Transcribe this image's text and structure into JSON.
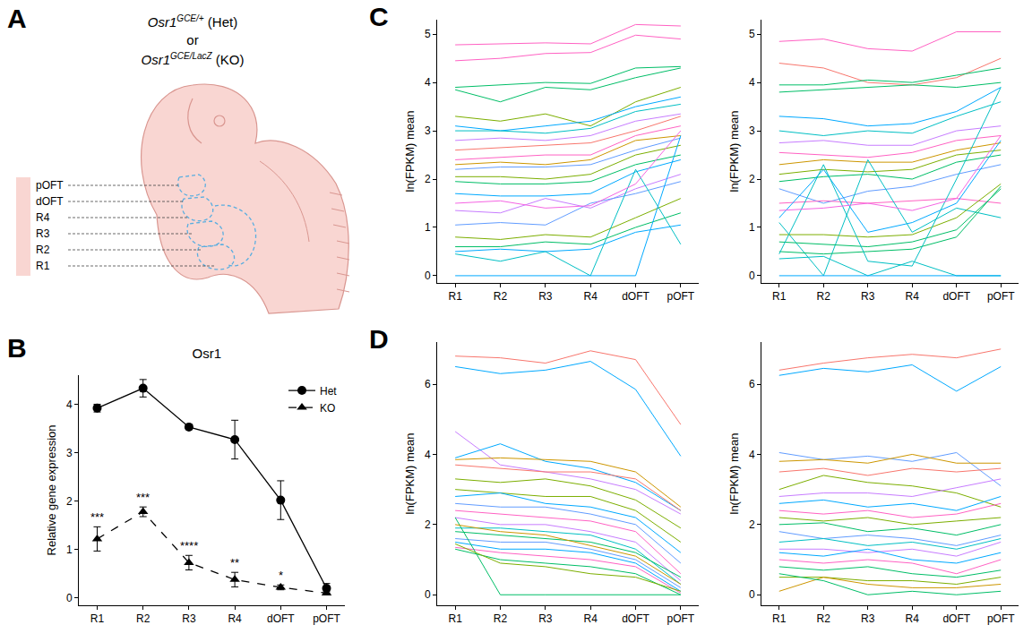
{
  "panel_a": {
    "letter": "A",
    "genotypes": [
      {
        "gene": "Osr1",
        "allele": "GCE/+",
        "label": "(Het)"
      },
      {
        "gene": "Osr1",
        "allele": "GCE/LacZ",
        "label": "(KO)"
      }
    ],
    "separator": "or",
    "regions": [
      "pOFT",
      "dOFT",
      "R4",
      "R3",
      "R2",
      "R1"
    ]
  },
  "chart_data": [
    {
      "panel": "B",
      "type": "line",
      "title": "Osr1",
      "y_label": "Relative gene expression",
      "categories": [
        "R1",
        "R2",
        "R3",
        "R4",
        "dOFT",
        "pOFT"
      ],
      "ylim": [
        -0.15,
        4.6
      ],
      "yticks": [
        0,
        1,
        2,
        3,
        4
      ],
      "legend": "top-right",
      "series": [
        {
          "name": "Het",
          "color": "#000000",
          "marker": "circle",
          "line_style": "solid",
          "values": [
            3.92,
            4.33,
            3.53,
            3.27,
            2.02,
            0.2
          ],
          "error": [
            0.08,
            0.18,
            0.03,
            0.4,
            0.4,
            0.1
          ]
        },
        {
          "name": "KO",
          "color": "#000000",
          "marker": "triangle-up",
          "line_style": "dashed",
          "values": [
            1.22,
            1.78,
            0.73,
            0.38,
            0.22,
            0.1
          ],
          "error": [
            0.25,
            0.1,
            0.15,
            0.15,
            0.05,
            0.03
          ],
          "significance": [
            "***",
            "***",
            "****",
            "**",
            "*",
            null
          ]
        }
      ]
    },
    {
      "panel": "C",
      "type": "line",
      "y_label": "ln(FPKM) mean",
      "categories": [
        "R1",
        "R2",
        "R3",
        "R4",
        "dOFT",
        "pOFT"
      ],
      "ylim": [
        -0.15,
        5.3
      ],
      "yticks": [
        0,
        1,
        2,
        3,
        4,
        5
      ],
      "series": [
        {
          "color": "#FF61C3",
          "values": [
            4.78,
            4.8,
            4.82,
            4.8,
            5.2,
            5.17
          ]
        },
        {
          "color": "#FF61C3",
          "values": [
            4.45,
            4.5,
            4.6,
            4.62,
            4.98,
            4.9
          ]
        },
        {
          "color": "#00BE67",
          "values": [
            3.9,
            3.95,
            4.0,
            3.98,
            4.3,
            4.33
          ]
        },
        {
          "color": "#00BE67",
          "values": [
            3.85,
            3.6,
            3.9,
            3.85,
            4.1,
            4.3
          ]
        },
        {
          "color": "#7CAE00",
          "values": [
            3.3,
            3.2,
            3.35,
            3.1,
            3.6,
            3.9
          ]
        },
        {
          "color": "#00A9FF",
          "values": [
            3.1,
            3.0,
            3.1,
            3.2,
            3.5,
            3.7
          ]
        },
        {
          "color": "#00BFC4",
          "values": [
            3.0,
            3.0,
            2.95,
            3.05,
            3.4,
            3.55
          ]
        },
        {
          "color": "#C77CFF",
          "values": [
            2.8,
            2.85,
            2.8,
            2.9,
            3.2,
            3.35
          ]
        },
        {
          "color": "#F8766D",
          "values": [
            2.6,
            2.65,
            2.7,
            2.75,
            3.0,
            3.3
          ]
        },
        {
          "color": "#FF61C3",
          "values": [
            2.4,
            2.45,
            2.5,
            2.5,
            2.9,
            3.1
          ]
        },
        {
          "color": "#CD9600",
          "values": [
            2.3,
            2.35,
            2.3,
            2.4,
            2.8,
            2.9
          ]
        },
        {
          "color": "#619CFF",
          "values": [
            2.2,
            2.25,
            2.25,
            2.3,
            2.6,
            2.85
          ]
        },
        {
          "color": "#7CAE00",
          "values": [
            2.05,
            2.05,
            2.0,
            2.1,
            2.5,
            2.7
          ]
        },
        {
          "color": "#00BE67",
          "values": [
            1.95,
            1.9,
            1.9,
            1.95,
            2.3,
            2.5
          ]
        },
        {
          "color": "#00A9FF",
          "values": [
            1.7,
            1.65,
            1.65,
            1.7,
            2.15,
            2.4
          ]
        },
        {
          "color": "#C77CFF",
          "values": [
            1.35,
            1.3,
            1.6,
            1.4,
            1.8,
            2.1
          ]
        },
        {
          "color": "#619CFF",
          "values": [
            1.05,
            1.1,
            1.05,
            1.5,
            1.7,
            1.95
          ]
        },
        {
          "color": "#7CAE00",
          "values": [
            0.8,
            0.75,
            0.85,
            0.8,
            1.2,
            1.6
          ]
        },
        {
          "color": "#00BE67",
          "values": [
            0.6,
            0.6,
            0.7,
            0.65,
            1.0,
            1.3
          ]
        },
        {
          "color": "#00A9FF",
          "values": [
            0.5,
            0.55,
            0.5,
            0.55,
            0.9,
            1.05
          ]
        },
        {
          "color": "#00BFC4",
          "values": [
            0.45,
            0.3,
            0.5,
            0.0,
            2.2,
            0.65
          ]
        },
        {
          "color": "#00A9FF",
          "values": [
            0.0,
            0.0,
            0.0,
            0.0,
            0.0,
            2.9
          ]
        },
        {
          "color": "#F564E3",
          "values": [
            1.5,
            1.55,
            1.4,
            1.45,
            1.9,
            3.0
          ]
        }
      ]
    },
    {
      "type": "line",
      "y_label": "ln(FPKM) mean",
      "categories": [
        "R1",
        "R2",
        "R3",
        "R4",
        "dOFT",
        "pOFT"
      ],
      "ylim": [
        -0.15,
        5.3
      ],
      "yticks": [
        0,
        1,
        2,
        3,
        4,
        5
      ],
      "series": [
        {
          "color": "#FF61C3",
          "values": [
            4.85,
            4.9,
            4.7,
            4.65,
            5.05,
            5.05
          ]
        },
        {
          "color": "#F8766D",
          "values": [
            4.4,
            4.3,
            4.0,
            3.95,
            4.1,
            4.5
          ]
        },
        {
          "color": "#00BE67",
          "values": [
            3.95,
            3.95,
            4.05,
            4.0,
            4.15,
            4.3
          ]
        },
        {
          "color": "#00BE67",
          "values": [
            3.8,
            3.85,
            3.9,
            3.95,
            3.9,
            4.0
          ]
        },
        {
          "color": "#00A9FF",
          "values": [
            3.3,
            3.25,
            3.1,
            3.15,
            3.4,
            3.9
          ]
        },
        {
          "color": "#00BFC4",
          "values": [
            3.0,
            2.9,
            3.0,
            2.95,
            3.3,
            3.6
          ]
        },
        {
          "color": "#C77CFF",
          "values": [
            2.75,
            2.8,
            2.7,
            2.7,
            3.0,
            3.1
          ]
        },
        {
          "color": "#FF61C3",
          "values": [
            2.55,
            2.5,
            2.45,
            2.55,
            2.8,
            2.9
          ]
        },
        {
          "color": "#CD9600",
          "values": [
            2.3,
            2.4,
            2.35,
            2.35,
            2.6,
            2.75
          ]
        },
        {
          "color": "#7CAE00",
          "values": [
            2.1,
            2.2,
            2.15,
            2.2,
            2.5,
            2.6
          ]
        },
        {
          "color": "#00BE67",
          "values": [
            1.95,
            2.05,
            2.1,
            2.0,
            2.35,
            2.5
          ]
        },
        {
          "color": "#619CFF",
          "values": [
            1.8,
            1.5,
            1.75,
            1.85,
            2.1,
            2.3
          ]
        },
        {
          "color": "#FF61C3",
          "values": [
            1.5,
            1.55,
            1.5,
            1.55,
            1.6,
            1.5
          ]
        },
        {
          "color": "#00A9FF",
          "values": [
            1.2,
            2.2,
            0.9,
            1.1,
            1.5,
            2.8
          ]
        },
        {
          "color": "#00BFC4",
          "values": [
            1.1,
            0.0,
            2.4,
            0.9,
            1.4,
            1.2
          ]
        },
        {
          "color": "#7CAE00",
          "values": [
            0.85,
            0.85,
            0.8,
            0.85,
            1.2,
            1.9
          ]
        },
        {
          "color": "#00BE67",
          "values": [
            0.7,
            0.65,
            0.6,
            0.7,
            0.95,
            1.8
          ]
        },
        {
          "color": "#00BE67",
          "values": [
            0.5,
            0.45,
            0.5,
            0.55,
            0.8,
            1.85
          ]
        },
        {
          "color": "#00BFC4",
          "values": [
            0.35,
            0.4,
            0.0,
            0.3,
            0.0,
            0.0
          ]
        },
        {
          "color": "#00A9FF",
          "values": [
            0.0,
            0.0,
            0.0,
            0.0,
            0.0,
            0.0
          ]
        },
        {
          "color": "#00BFC4",
          "values": [
            0.45,
            2.3,
            0.3,
            0.2,
            2.0,
            3.9
          ]
        },
        {
          "color": "#F564E3",
          "values": [
            1.35,
            1.4,
            1.5,
            1.35,
            1.6,
            2.9
          ]
        }
      ]
    },
    {
      "panel": "D",
      "type": "line",
      "y_label": "ln(FPKM) mean",
      "categories": [
        "R1",
        "R2",
        "R3",
        "R4",
        "dOFT",
        "pOFT"
      ],
      "ylim": [
        -0.3,
        7.2
      ],
      "yticks": [
        0,
        2,
        4,
        6
      ],
      "series": [
        {
          "color": "#F8766D",
          "values": [
            6.8,
            6.75,
            6.6,
            6.95,
            6.7,
            4.85
          ]
        },
        {
          "color": "#00A9FF",
          "values": [
            6.5,
            6.3,
            6.4,
            6.65,
            5.85,
            3.95
          ]
        },
        {
          "color": "#C77CFF",
          "values": [
            4.65,
            3.7,
            3.5,
            3.3,
            3.0,
            2.3
          ]
        },
        {
          "color": "#00A9FF",
          "values": [
            3.9,
            4.3,
            3.8,
            3.6,
            3.2,
            2.4
          ]
        },
        {
          "color": "#CD9600",
          "values": [
            3.85,
            3.9,
            3.85,
            3.8,
            3.5,
            2.5
          ]
        },
        {
          "color": "#F8766D",
          "values": [
            3.7,
            3.6,
            3.5,
            3.5,
            3.3,
            2.4
          ]
        },
        {
          "color": "#7CAE00",
          "values": [
            3.3,
            3.2,
            3.3,
            3.1,
            2.7,
            1.9
          ]
        },
        {
          "color": "#7CAE00",
          "values": [
            3.0,
            2.9,
            2.8,
            2.8,
            2.4,
            1.5
          ]
        },
        {
          "color": "#00A9FF",
          "values": [
            2.8,
            2.9,
            2.6,
            2.5,
            2.2,
            1.2
          ]
        },
        {
          "color": "#619CFF",
          "values": [
            2.6,
            2.5,
            2.5,
            2.3,
            2.0,
            0.9
          ]
        },
        {
          "color": "#FF61C3",
          "values": [
            2.4,
            2.3,
            2.2,
            2.1,
            1.8,
            0.6
          ]
        },
        {
          "color": "#C77CFF",
          "values": [
            2.2,
            2.0,
            2.0,
            1.8,
            1.5,
            0.4
          ]
        },
        {
          "color": "#00BFC4",
          "values": [
            1.9,
            1.9,
            1.8,
            1.7,
            1.3,
            0.3
          ]
        },
        {
          "color": "#00BE67",
          "values": [
            1.8,
            1.7,
            1.6,
            1.5,
            1.2,
            0.5
          ]
        },
        {
          "color": "#619CFF",
          "values": [
            1.6,
            1.5,
            1.5,
            1.3,
            1.0,
            0.2
          ]
        },
        {
          "color": "#00A9FF",
          "values": [
            1.5,
            1.3,
            1.3,
            1.2,
            0.9,
            0.1
          ]
        },
        {
          "color": "#FF61C3",
          "values": [
            1.35,
            1.2,
            1.1,
            1.0,
            0.8,
            0.05
          ]
        },
        {
          "color": "#00BE67",
          "values": [
            1.3,
            1.0,
            0.9,
            0.8,
            0.6,
            0.0
          ]
        },
        {
          "color": "#00BE67",
          "values": [
            2.2,
            0.0,
            0.0,
            0.0,
            0.0,
            0.0
          ]
        },
        {
          "color": "#7CAE00",
          "values": [
            1.45,
            0.9,
            0.8,
            0.6,
            0.5,
            0.1
          ]
        },
        {
          "color": "#CD9600",
          "values": [
            2.0,
            1.8,
            1.7,
            1.4,
            1.1,
            0.3
          ]
        }
      ]
    },
    {
      "type": "line",
      "y_label": "ln(FPKM) mean",
      "categories": [
        "R1",
        "R2",
        "R3",
        "R4",
        "dOFT",
        "pOFT"
      ],
      "ylim": [
        -0.3,
        7.2
      ],
      "yticks": [
        0,
        2,
        4,
        6
      ],
      "series": [
        {
          "color": "#F8766D",
          "values": [
            6.4,
            6.6,
            6.75,
            6.85,
            6.75,
            7.0
          ]
        },
        {
          "color": "#00A9FF",
          "values": [
            6.25,
            6.45,
            6.35,
            6.55,
            5.8,
            6.5
          ]
        },
        {
          "color": "#619CFF",
          "values": [
            4.05,
            3.85,
            3.95,
            3.8,
            4.05,
            3.1
          ]
        },
        {
          "color": "#CD9600",
          "values": [
            3.8,
            3.85,
            3.75,
            4.0,
            3.75,
            3.75
          ]
        },
        {
          "color": "#F8766D",
          "values": [
            3.5,
            3.6,
            3.4,
            3.6,
            3.5,
            3.6
          ]
        },
        {
          "color": "#7CAE00",
          "values": [
            3.0,
            3.4,
            3.2,
            3.1,
            2.9,
            2.5
          ]
        },
        {
          "color": "#C77CFF",
          "values": [
            2.8,
            2.9,
            2.9,
            2.8,
            3.05,
            3.3
          ]
        },
        {
          "color": "#00A9FF",
          "values": [
            2.6,
            2.7,
            2.5,
            2.6,
            2.4,
            2.8
          ]
        },
        {
          "color": "#FF61C3",
          "values": [
            2.4,
            2.3,
            2.4,
            2.2,
            2.3,
            2.6
          ]
        },
        {
          "color": "#7CAE00",
          "values": [
            2.2,
            2.1,
            2.2,
            2.0,
            2.1,
            2.2
          ]
        },
        {
          "color": "#00BE67",
          "values": [
            2.0,
            2.05,
            1.8,
            1.9,
            1.7,
            2.0
          ]
        },
        {
          "color": "#619CFF",
          "values": [
            1.8,
            1.6,
            1.7,
            1.6,
            1.4,
            1.7
          ]
        },
        {
          "color": "#00BFC4",
          "values": [
            1.5,
            1.6,
            1.4,
            1.5,
            1.3,
            1.6
          ]
        },
        {
          "color": "#C77CFF",
          "values": [
            1.3,
            1.3,
            1.2,
            1.3,
            1.1,
            1.5
          ]
        },
        {
          "color": "#00A9FF",
          "values": [
            1.2,
            1.1,
            1.3,
            1.0,
            0.9,
            1.2
          ]
        },
        {
          "color": "#FF61C3",
          "values": [
            1.0,
            0.9,
            1.0,
            0.9,
            0.6,
            1.0
          ]
        },
        {
          "color": "#00BE67",
          "values": [
            0.8,
            0.7,
            0.8,
            0.6,
            0.5,
            0.7
          ]
        },
        {
          "color": "#7CAE00",
          "values": [
            0.5,
            0.5,
            0.4,
            0.4,
            0.3,
            0.5
          ]
        },
        {
          "color": "#CD9600",
          "values": [
            0.1,
            0.5,
            0.3,
            0.2,
            0.2,
            0.3
          ]
        },
        {
          "color": "#00BE67",
          "values": [
            0.6,
            0.4,
            0.0,
            0.1,
            0.0,
            0.1
          ]
        }
      ]
    }
  ]
}
